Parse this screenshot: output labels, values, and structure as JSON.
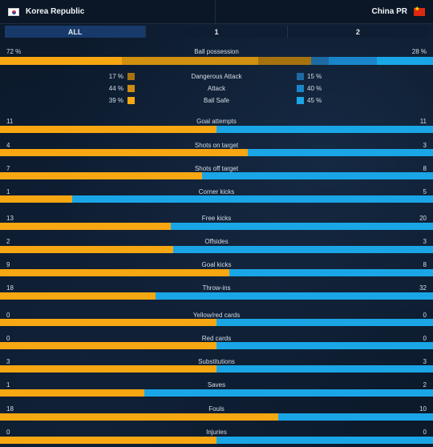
{
  "teams": {
    "home": "Korea Republic",
    "away": "China PR"
  },
  "tabs": [
    "ALL",
    "1",
    "2"
  ],
  "colors": {
    "home": "#f7a712",
    "away": "#1aa6e6"
  },
  "possession": {
    "label": "Ball possession",
    "home": "72 %",
    "away": "28 %",
    "home_value": 72,
    "away_value": 28
  },
  "zones": [
    {
      "label": "Dangerous Attack",
      "home": "17 %",
      "away": "15 %",
      "home_color": "#a6720f",
      "away_color": "#1d6aa3"
    },
    {
      "label": "Attack",
      "home": "44 %",
      "away": "40 %",
      "home_color": "#cf8c12",
      "away_color": "#1a86c9"
    },
    {
      "label": "Ball Safe",
      "home": "39 %",
      "away": "45 %",
      "home_color": "#f7a712",
      "away_color": "#1aa6e6"
    }
  ],
  "stats": [
    {
      "label": "Goal attempts",
      "home": "11",
      "away": "11"
    },
    {
      "label": "Shots on target",
      "home": "4",
      "away": "3"
    },
    {
      "label": "Shots off target",
      "home": "7",
      "away": "8"
    },
    {
      "label": "Corner kicks",
      "home": "1",
      "away": "5"
    },
    {
      "label": "Free kicks",
      "home": "13",
      "away": "20"
    },
    {
      "label": "Offsides",
      "home": "2",
      "away": "3"
    },
    {
      "label": "Goal kicks",
      "home": "9",
      "away": "8"
    },
    {
      "label": "Throw-ins",
      "home": "18",
      "away": "32"
    },
    {
      "label": "Yellow/red cards",
      "home": "0",
      "away": "0"
    },
    {
      "label": "Red cards",
      "home": "0",
      "away": "0"
    },
    {
      "label": "Substitutions",
      "home": "3",
      "away": "3"
    },
    {
      "label": "Saves",
      "home": "1",
      "away": "2"
    },
    {
      "label": "Fouls",
      "home": "18",
      "away": "10"
    },
    {
      "label": "Injuries",
      "home": "0",
      "away": "0"
    }
  ]
}
